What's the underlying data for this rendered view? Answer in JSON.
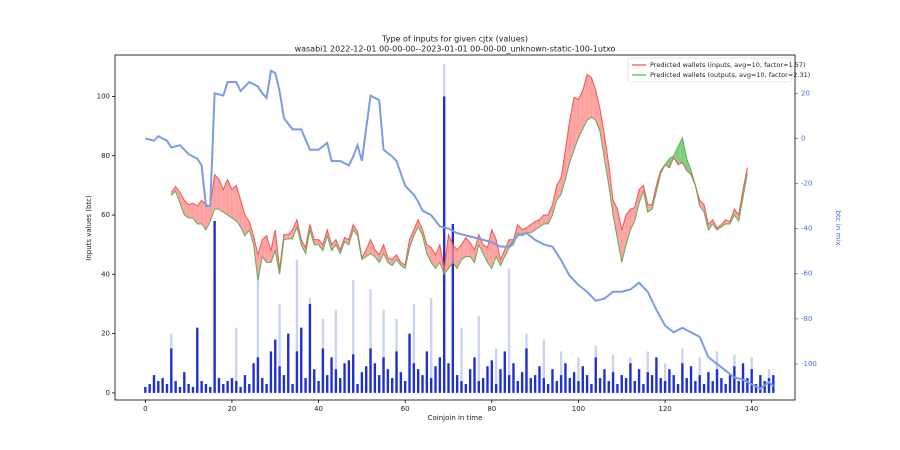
{
  "chart_data": {
    "type": "combo",
    "title": "Type of inputs for given cjtx (values)",
    "subtitle": "wasabi1 2022-12-01 00-00-00--2023-01-01 00-00-00_unknown-static-100-1utxo",
    "x_label": "Coinjoin in time",
    "y_label": "Inputs values (btc)",
    "y2_label": "btc in mix",
    "xlim": [
      -7,
      150
    ],
    "xticks": [
      0,
      20,
      40,
      60,
      80,
      100,
      120,
      140
    ],
    "ylim": [
      -2.4,
      114
    ],
    "yticks": [
      0,
      20,
      40,
      60,
      80,
      100
    ],
    "y2lim": [
      -116,
      37
    ],
    "y2ticks": [
      -100,
      -80,
      -60,
      -40,
      -20,
      0,
      20
    ],
    "legend": "upper right",
    "series": [
      {
        "name": "Predicted wallets (inputs, avg=10, factor=1.57)",
        "color": "#e8504a",
        "x": [
          6,
          7,
          8,
          9,
          10,
          11,
          12,
          13,
          14,
          15,
          16,
          17,
          18,
          19,
          20,
          21,
          22,
          23,
          24,
          25,
          26,
          27,
          28,
          29,
          30,
          31,
          32,
          33,
          34,
          35,
          36,
          37,
          38,
          39,
          40,
          41,
          42,
          43,
          44,
          45,
          46,
          47,
          48,
          49,
          50,
          51,
          52,
          53,
          54,
          55,
          56,
          57,
          58,
          59,
          60,
          61,
          62,
          63,
          64,
          65,
          66,
          67,
          68,
          69,
          70,
          71,
          72,
          73,
          74,
          75,
          76,
          77,
          78,
          79,
          80,
          81,
          82,
          83,
          84,
          85,
          86,
          87,
          88,
          89,
          90,
          91,
          92,
          93,
          94,
          95,
          96,
          97,
          98,
          99,
          100,
          101,
          102,
          103,
          104,
          105,
          106,
          107,
          108,
          109,
          110,
          111,
          112,
          113,
          114,
          115,
          116,
          117,
          118,
          119,
          120,
          121,
          122,
          123,
          124,
          125,
          126,
          127,
          128,
          129,
          130,
          131,
          132,
          133,
          134,
          135,
          136,
          137,
          138,
          139
        ],
        "values": [
          67.6,
          69.6,
          67.6,
          65,
          63.5,
          64,
          63,
          65,
          63.5,
          63,
          73.6,
          72,
          68.6,
          72,
          68.6,
          70,
          65,
          60,
          57.8,
          53,
          46.6,
          51.7,
          53,
          48,
          55,
          41.5,
          53.4,
          53.4,
          55,
          58.4,
          51.7,
          49,
          56.8,
          51.7,
          51.7,
          50,
          55,
          50,
          51.7,
          48.3,
          52.4,
          51.7,
          56.8,
          54.4,
          45.6,
          48.3,
          51.7,
          48.3,
          46.6,
          50,
          45.6,
          45,
          46.6,
          44,
          43.2,
          51.7,
          55,
          58.4,
          55,
          50,
          49,
          46.6,
          50,
          41.5,
          53.4,
          50,
          48.3,
          50,
          52.4,
          50.7,
          48.3,
          53.4,
          50,
          49,
          55,
          51.7,
          45,
          48.3,
          51.7,
          51.7,
          56.8,
          55,
          55.7,
          56.8,
          57.8,
          58.4,
          60,
          60,
          63.5,
          70,
          72.6,
          82,
          92,
          99.7,
          99,
          102,
          107.4,
          106.4,
          102,
          95.6,
          87,
          77,
          65,
          62,
          55,
          60,
          62,
          62.5,
          68.6,
          70,
          63.5,
          63.5,
          70,
          75,
          77,
          76,
          79.4,
          77,
          77.7,
          75,
          73.6,
          70,
          65,
          63.5,
          56.8,
          58.4,
          55.7,
          56.8,
          58.4,
          57.8,
          62,
          60,
          68.6,
          76
        ]
      },
      {
        "name": "Predicted wallets (outputs, avg=10, factor=2.31)",
        "color": "#4caf50",
        "x": [
          6,
          7,
          8,
          9,
          10,
          11,
          12,
          13,
          14,
          15,
          16,
          17,
          18,
          19,
          20,
          21,
          22,
          23,
          24,
          25,
          26,
          27,
          28,
          29,
          30,
          31,
          32,
          33,
          34,
          35,
          36,
          37,
          38,
          39,
          40,
          41,
          42,
          43,
          44,
          45,
          46,
          47,
          48,
          49,
          50,
          51,
          52,
          53,
          54,
          55,
          56,
          57,
          58,
          59,
          60,
          61,
          62,
          63,
          64,
          65,
          66,
          67,
          68,
          69,
          70,
          71,
          72,
          73,
          74,
          75,
          76,
          77,
          78,
          79,
          80,
          81,
          82,
          83,
          84,
          85,
          86,
          87,
          88,
          89,
          90,
          91,
          92,
          93,
          94,
          95,
          96,
          97,
          98,
          99,
          100,
          101,
          102,
          103,
          104,
          105,
          106,
          107,
          108,
          109,
          110,
          111,
          112,
          113,
          114,
          115,
          116,
          117,
          118,
          119,
          120,
          121,
          122,
          123,
          124,
          125,
          126,
          127,
          128,
          129,
          130,
          131,
          132,
          133,
          134,
          135,
          136,
          137,
          138,
          139
        ],
        "values": [
          66.6,
          68,
          64,
          60,
          59,
          59,
          57,
          57,
          55,
          58,
          62,
          62,
          61,
          60,
          59,
          58,
          56,
          53,
          55,
          50,
          38,
          46,
          44,
          44,
          48,
          40,
          51.7,
          52,
          52,
          56,
          50,
          47,
          55,
          50,
          50,
          48,
          53,
          48,
          50,
          47,
          51,
          50,
          55,
          53,
          45,
          46,
          47,
          46,
          44,
          47,
          44,
          43,
          45,
          43,
          42,
          49,
          53,
          56,
          53,
          47,
          44,
          42,
          44,
          40,
          42,
          44,
          42,
          45,
          46,
          46,
          44,
          50,
          47,
          44,
          42,
          46,
          43,
          46,
          49,
          50,
          54,
          53,
          54,
          54,
          55,
          56,
          57,
          57,
          60,
          65,
          67,
          72,
          78,
          82,
          86,
          89,
          92,
          93,
          92,
          88,
          79,
          70,
          60,
          52,
          44,
          50,
          55,
          58,
          64,
          68,
          61,
          62,
          68,
          74,
          77,
          79,
          80,
          83,
          86,
          79,
          75,
          70,
          63,
          61,
          55,
          57,
          55,
          56,
          57,
          57,
          60,
          58,
          66,
          74
        ]
      }
    ],
    "fill_colors": [
      "#ff8a8a",
      "#5cc25c"
    ],
    "mix_line": {
      "color": "#7b9be8",
      "axis": "y2",
      "x": [
        0,
        2,
        3,
        5,
        6,
        8,
        10,
        12,
        13,
        14,
        15,
        16,
        18,
        19,
        21,
        22,
        24,
        26,
        27,
        28,
        29,
        30,
        31,
        32,
        34,
        36,
        38,
        40,
        42,
        43,
        45,
        47,
        48,
        49,
        50,
        52,
        54,
        55,
        57,
        58,
        60,
        62,
        63,
        64,
        66,
        68,
        70,
        72,
        74,
        76,
        78,
        80,
        82,
        84,
        86,
        88,
        90,
        92,
        94,
        96,
        98,
        100,
        102,
        104,
        106,
        108,
        110,
        112,
        114,
        116,
        118,
        120,
        122,
        124,
        126,
        128,
        130,
        132,
        134,
        136,
        138,
        140,
        142,
        144,
        145
      ],
      "values": [
        0,
        -1,
        1,
        -1,
        -4,
        -3,
        -7,
        -9,
        -12,
        -30,
        -30,
        20,
        19,
        25,
        25,
        21,
        25,
        23,
        20,
        18,
        30,
        29,
        21,
        9,
        4,
        4,
        -5,
        -5,
        -2,
        -10,
        -10,
        -12,
        -8,
        -3,
        -10,
        19,
        17,
        -5,
        -8,
        -10,
        -21,
        -25,
        -28,
        -32,
        -34,
        -39,
        -40,
        -42,
        -43,
        -44,
        -45,
        -46,
        -48,
        -48,
        -43,
        -42,
        -45,
        -47,
        -48,
        -54,
        -61,
        -65,
        -68,
        -72,
        -71,
        -68,
        -68,
        -67,
        -64,
        -68,
        -76,
        -83,
        -86,
        -84,
        -86,
        -88,
        -97,
        -100,
        -103,
        -106,
        -107,
        -109,
        -111,
        -108,
        -110
      ]
    },
    "bars": {
      "color": "#1f2fd0",
      "x": [
        0,
        1,
        2,
        3,
        4,
        5,
        6,
        7,
        8,
        9,
        10,
        11,
        12,
        13,
        14,
        15,
        16,
        17,
        18,
        19,
        20,
        21,
        22,
        23,
        24,
        25,
        26,
        27,
        28,
        29,
        30,
        31,
        32,
        33,
        34,
        35,
        36,
        37,
        38,
        39,
        40,
        41,
        42,
        43,
        44,
        45,
        46,
        47,
        48,
        49,
        50,
        51,
        52,
        53,
        54,
        55,
        56,
        57,
        58,
        59,
        60,
        61,
        62,
        63,
        64,
        65,
        66,
        67,
        68,
        69,
        70,
        71,
        72,
        73,
        74,
        75,
        76,
        77,
        78,
        79,
        80,
        81,
        82,
        83,
        84,
        85,
        86,
        87,
        88,
        89,
        90,
        91,
        92,
        93,
        94,
        95,
        96,
        97,
        98,
        99,
        100,
        101,
        102,
        103,
        104,
        105,
        106,
        107,
        108,
        109,
        110,
        111,
        112,
        113,
        114,
        115,
        116,
        117,
        118,
        119,
        120,
        121,
        122,
        123,
        124,
        125,
        126,
        127,
        128,
        129,
        130,
        131,
        132,
        133,
        134,
        135,
        136,
        137,
        138,
        139,
        140,
        141,
        142,
        143,
        144,
        145
      ],
      "values": [
        2,
        3,
        6,
        4,
        5,
        3,
        15,
        4,
        2,
        7,
        3,
        2,
        22,
        4,
        3,
        2,
        58,
        5,
        3,
        4,
        5,
        4,
        2,
        6,
        3,
        10,
        12,
        5,
        3,
        14,
        18,
        9,
        6,
        20,
        3,
        14,
        22,
        5,
        30,
        8,
        4,
        15,
        6,
        12,
        8,
        5,
        10,
        11,
        13,
        3,
        7,
        9,
        15,
        10,
        6,
        12,
        8,
        5,
        14,
        7,
        4,
        20,
        10,
        8,
        6,
        14,
        5,
        9,
        12,
        100,
        10,
        57,
        6,
        4,
        3,
        8,
        12,
        4,
        5,
        9,
        11,
        3,
        8,
        14,
        6,
        10,
        4,
        7,
        15,
        5,
        6,
        9,
        5,
        3,
        8,
        4,
        6,
        10,
        5,
        7,
        4,
        9,
        6,
        3,
        12,
        5,
        8,
        4,
        7,
        3,
        6,
        5,
        10,
        4,
        8,
        3,
        7,
        6,
        12,
        5,
        4,
        8,
        6,
        3,
        10,
        5,
        9,
        4,
        6,
        3,
        7,
        4,
        8,
        5,
        3,
        6,
        9,
        4,
        10,
        5,
        8,
        3,
        6,
        4,
        5,
        6
      ]
    },
    "light_bars": {
      "color": "#a9b6ef",
      "x": [
        2,
        6,
        12,
        16,
        21,
        26,
        31,
        35,
        38,
        41,
        44,
        48,
        52,
        55,
        58,
        62,
        66,
        69,
        73,
        77,
        81,
        84,
        88,
        92,
        96,
        100,
        104,
        108,
        112,
        116,
        120,
        124,
        128,
        132,
        136,
        140,
        144
      ],
      "values": [
        5,
        20,
        18,
        40,
        22,
        40,
        30,
        45,
        32,
        25,
        28,
        38,
        35,
        28,
        25,
        30,
        32,
        111,
        22,
        26,
        15,
        42,
        20,
        18,
        14,
        12,
        16,
        13,
        12,
        14,
        10,
        15,
        12,
        14,
        13,
        12,
        8
      ]
    }
  }
}
